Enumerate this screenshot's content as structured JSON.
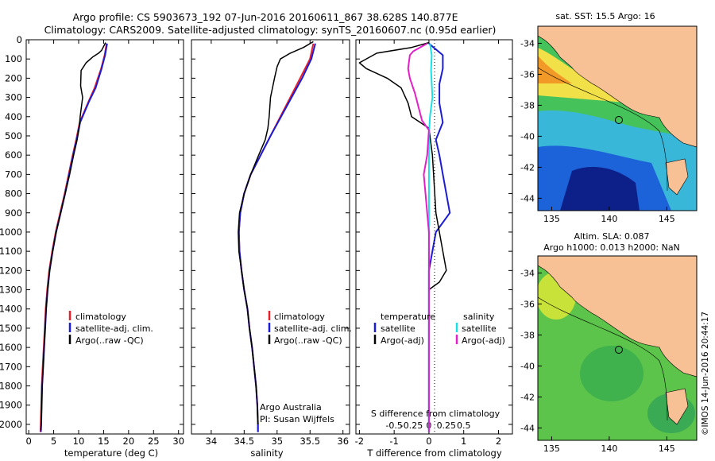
{
  "header": {
    "line1": "Argo profile: CS 5903673_192 07-Jun-2016 20160611_867 38.628S 140.877E",
    "line2": "Climatology: CARS2009. Satellite-adjusted climatology: synTS_20160607.nc (0.95d earlier)"
  },
  "colors": {
    "climatology": "#e8202a",
    "satellite": "#1c1cd6",
    "argo": "#000000",
    "sal_satellite": "#19e0e6",
    "sal_argo": "#e31fc9",
    "land": "#f7c195"
  },
  "panels": {
    "temperature": {
      "xlabel": "temperature (deg C)",
      "legend": [
        "climatology",
        "satellite-adj. clim.",
        "Argo(..raw -QC)"
      ]
    },
    "salinity": {
      "xlabel": "salinity",
      "legend": [
        "climatology",
        "satellite-adj. clim.",
        "Argo(..raw -QC)"
      ],
      "credit1": "Argo Australia",
      "credit2": "PI: Susan Wijffels"
    },
    "difference": {
      "xlabel": "T difference from climatology",
      "top_label": "S difference from climatology",
      "legend_left_title": "temperature",
      "legend_right_title": "salinity",
      "legend_left": [
        "satellite",
        "Argo(-adj)"
      ],
      "legend_right": [
        "satellite",
        "Argo(-adj)"
      ]
    }
  },
  "maps": {
    "sst_title": "sat. SST: 15.5 Argo: 16",
    "sla_title1": "Altim. SLA: 0.087",
    "sla_title2": "Argo h1000: 0.013 h2000: NaN",
    "lat_ticks": [
      "-34",
      "-36",
      "-38",
      "-40",
      "-42",
      "-44"
    ],
    "lon_ticks": [
      "135",
      "140",
      "145"
    ]
  },
  "watermark": "©IMOS 14-Jun-2016 20:44:17",
  "chart_data": [
    {
      "type": "line",
      "title": "",
      "xlabel": "temperature (deg C)",
      "ylabel": "",
      "xlim": [
        -0.5,
        31
      ],
      "ylim": [
        2050,
        0
      ],
      "xticks": [
        0,
        5,
        10,
        15,
        20,
        25,
        30
      ],
      "yticks": [
        0,
        100,
        200,
        300,
        400,
        500,
        600,
        700,
        800,
        900,
        1000,
        1100,
        1200,
        1300,
        1400,
        1500,
        1600,
        1700,
        1800,
        1900,
        2000
      ],
      "y_inverted": true,
      "legend_position": "lower-right",
      "series": [
        {
          "name": "climatology",
          "color": "#e8202a",
          "width": 2,
          "points": [
            [
              15.6,
              20
            ],
            [
              15.2,
              80
            ],
            [
              14.5,
              150
            ],
            [
              13.2,
              250
            ],
            [
              12,
              320
            ],
            [
              10.2,
              430
            ],
            [
              9.5,
              520
            ],
            [
              8.8,
              600
            ],
            [
              8,
              700
            ],
            [
              7.2,
              800
            ],
            [
              6.3,
              900
            ],
            [
              5.4,
              1000
            ],
            [
              4.7,
              1100
            ],
            [
              4.1,
              1200
            ],
            [
              3.7,
              1300
            ],
            [
              3.4,
              1400
            ],
            [
              3.2,
              1500
            ],
            [
              3,
              1600
            ],
            [
              2.8,
              1700
            ],
            [
              2.6,
              1800
            ],
            [
              2.5,
              1900
            ],
            [
              2.4,
              2000
            ],
            [
              2.35,
              2040
            ]
          ]
        },
        {
          "name": "satellite-adj. clim.",
          "color": "#1c1cd6",
          "width": 2,
          "points": [
            [
              15.7,
              20
            ],
            [
              15.3,
              80
            ],
            [
              14.6,
              150
            ],
            [
              13.4,
              250
            ],
            [
              12.1,
              320
            ],
            [
              10.3,
              430
            ],
            [
              9.6,
              520
            ],
            [
              8.9,
              600
            ],
            [
              8.1,
              700
            ],
            [
              7.3,
              800
            ],
            [
              6.4,
              900
            ],
            [
              5.5,
              1000
            ],
            [
              4.8,
              1100
            ],
            [
              4.2,
              1200
            ],
            [
              3.8,
              1300
            ],
            [
              3.5,
              1400
            ],
            [
              3.3,
              1500
            ],
            [
              3.1,
              1600
            ],
            [
              2.9,
              1700
            ],
            [
              2.7,
              1800
            ],
            [
              2.6,
              1900
            ],
            [
              2.5,
              2000
            ],
            [
              2.45,
              2040
            ]
          ]
        },
        {
          "name": "Argo(..raw -QC)",
          "color": "#000000",
          "width": 1.5,
          "points": [
            [
              15.4,
              15
            ],
            [
              14.6,
              55
            ],
            [
              14,
              70
            ],
            [
              12.8,
              90
            ],
            [
              11.5,
              120
            ],
            [
              10.5,
              160
            ],
            [
              10.4,
              240
            ],
            [
              10.8,
              300
            ],
            [
              10.3,
              400
            ],
            [
              10.1,
              460
            ],
            [
              9.7,
              520
            ],
            [
              9,
              600
            ],
            [
              8.2,
              700
            ],
            [
              7.3,
              800
            ],
            [
              6.4,
              900
            ],
            [
              5.5,
              1000
            ],
            [
              4.8,
              1100
            ],
            [
              4.2,
              1200
            ],
            [
              3.8,
              1300
            ],
            [
              3.5,
              1400
            ],
            [
              3.3,
              1500
            ],
            [
              3.1,
              1600
            ],
            [
              2.9,
              1700
            ],
            [
              2.7,
              1800
            ],
            [
              2.6,
              1900
            ],
            [
              2.5,
              2000
            ],
            [
              2.45,
              2030
            ]
          ]
        }
      ]
    },
    {
      "type": "line",
      "title": "",
      "xlabel": "salinity",
      "ylabel": "",
      "xlim": [
        33.7,
        36.1
      ],
      "ylim": [
        2050,
        0
      ],
      "xticks": [
        34,
        34.5,
        35,
        35.5,
        36
      ],
      "y_inverted": true,
      "legend_position": "lower-right",
      "series": [
        {
          "name": "climatology",
          "color": "#e8202a",
          "width": 2,
          "points": [
            [
              35.55,
              20
            ],
            [
              35.5,
              100
            ],
            [
              35.35,
              200
            ],
            [
              35.2,
              300
            ],
            [
              35.05,
              400
            ],
            [
              34.9,
              500
            ],
            [
              34.75,
              600
            ],
            [
              34.6,
              700
            ],
            [
              34.5,
              800
            ],
            [
              34.44,
              900
            ],
            [
              34.42,
              1000
            ],
            [
              34.43,
              1100
            ],
            [
              34.46,
              1200
            ],
            [
              34.5,
              1300
            ],
            [
              34.55,
              1400
            ],
            [
              34.58,
              1500
            ],
            [
              34.62,
              1600
            ],
            [
              34.65,
              1700
            ],
            [
              34.68,
              1800
            ],
            [
              34.7,
              1900
            ],
            [
              34.71,
              2000
            ],
            [
              34.71,
              2040
            ]
          ]
        },
        {
          "name": "satellite-adj. clim.",
          "color": "#1c1cd6",
          "width": 2,
          "points": [
            [
              35.58,
              20
            ],
            [
              35.52,
              100
            ],
            [
              35.38,
              200
            ],
            [
              35.22,
              300
            ],
            [
              35.06,
              400
            ],
            [
              34.9,
              500
            ],
            [
              34.75,
              600
            ],
            [
              34.6,
              700
            ],
            [
              34.5,
              800
            ],
            [
              34.44,
              900
            ],
            [
              34.42,
              1000
            ],
            [
              34.43,
              1100
            ],
            [
              34.46,
              1200
            ],
            [
              34.5,
              1300
            ],
            [
              34.55,
              1400
            ],
            [
              34.58,
              1500
            ],
            [
              34.62,
              1600
            ],
            [
              34.65,
              1700
            ],
            [
              34.68,
              1800
            ],
            [
              34.7,
              1900
            ],
            [
              34.71,
              2000
            ],
            [
              34.71,
              2040
            ]
          ]
        },
        {
          "name": "Argo(..raw -QC)",
          "color": "#000000",
          "width": 1.5,
          "points": [
            [
              35.55,
              10
            ],
            [
              35.4,
              40
            ],
            [
              35.2,
              70
            ],
            [
              35.05,
              100
            ],
            [
              35,
              140
            ],
            [
              34.96,
              200
            ],
            [
              34.9,
              300
            ],
            [
              34.88,
              400
            ],
            [
              34.86,
              460
            ],
            [
              34.82,
              520
            ],
            [
              34.72,
              600
            ],
            [
              34.6,
              700
            ],
            [
              34.5,
              800
            ],
            [
              34.43,
              900
            ],
            [
              34.41,
              1000
            ],
            [
              34.42,
              1100
            ],
            [
              34.46,
              1200
            ],
            [
              34.5,
              1300
            ],
            [
              34.55,
              1400
            ],
            [
              34.58,
              1500
            ],
            [
              34.62,
              1600
            ],
            [
              34.65,
              1700
            ],
            [
              34.68,
              1800
            ],
            [
              34.7,
              1900
            ],
            [
              34.71,
              2000
            ]
          ]
        }
      ]
    },
    {
      "type": "line",
      "title": "",
      "xlabel": "T difference from climatology",
      "top_label": "S difference from climatology",
      "xlim": [
        -2.1,
        2.4
      ],
      "ylim": [
        2050,
        0
      ],
      "xticks": [
        -2,
        -1,
        0,
        1,
        2
      ],
      "top_ticks": [
        "-0.5",
        "-0.25",
        "0",
        "0.25",
        "0.5"
      ],
      "y_inverted": true,
      "legend_position": "lower-right",
      "series": [
        {
          "name": "temperature satellite",
          "color": "#1c1cd6",
          "width": 2,
          "points": [
            [
              0,
              20
            ],
            [
              0.4,
              80
            ],
            [
              0.4,
              150
            ],
            [
              0.3,
              230
            ],
            [
              0.3,
              330
            ],
            [
              0.4,
              430
            ],
            [
              0.2,
              520
            ],
            [
              0.3,
              600
            ],
            [
              0.4,
              700
            ],
            [
              0.5,
              800
            ],
            [
              0.6,
              900
            ],
            [
              0.2,
              1000
            ],
            [
              0.1,
              1100
            ],
            [
              0,
              1200
            ],
            [
              0,
              2040
            ]
          ]
        },
        {
          "name": "temperature Argo(-adj)",
          "color": "#000000",
          "width": 1.5,
          "points": [
            [
              0,
              15
            ],
            [
              -0.5,
              40
            ],
            [
              -1.5,
              70
            ],
            [
              -2,
              120
            ],
            [
              -1.8,
              150
            ],
            [
              -1.2,
              200
            ],
            [
              -0.8,
              250
            ],
            [
              -0.6,
              330
            ],
            [
              -0.5,
              400
            ],
            [
              0,
              460
            ],
            [
              0.1,
              600
            ],
            [
              0.2,
              900
            ],
            [
              0.4,
              1100
            ],
            [
              0.5,
              1200
            ],
            [
              0.3,
              1260
            ],
            [
              0,
              1300
            ],
            [
              0,
              2040
            ]
          ]
        },
        {
          "name": "salinity satellite",
          "color": "#19e0e6",
          "width": 2,
          "points": [
            [
              0.03,
              20
            ],
            [
              0.08,
              80
            ],
            [
              0.06,
              160
            ],
            [
              0.1,
              300
            ],
            [
              0.03,
              400
            ],
            [
              0,
              500
            ],
            [
              0,
              2040
            ]
          ]
        },
        {
          "name": "salinity Argo(-adj)",
          "color": "#e31fc9",
          "width": 2,
          "points": [
            [
              -0.05,
              20
            ],
            [
              -0.45,
              60
            ],
            [
              -0.55,
              80
            ],
            [
              -0.6,
              150
            ],
            [
              -0.55,
              200
            ],
            [
              -0.4,
              280
            ],
            [
              -0.3,
              350
            ],
            [
              -0.2,
              420
            ],
            [
              0,
              470
            ],
            [
              -0.05,
              600
            ],
            [
              -0.15,
              700
            ],
            [
              -0.1,
              800
            ],
            [
              -0.05,
              900
            ],
            [
              0,
              1000
            ],
            [
              0,
              2040
            ]
          ]
        }
      ]
    }
  ]
}
